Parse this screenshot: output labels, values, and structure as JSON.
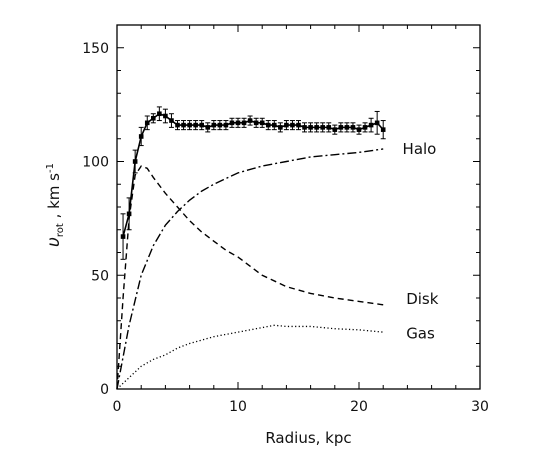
{
  "chart_data": {
    "type": "line",
    "title": "",
    "xlabel": "Radius, kpc",
    "ylabel": "υrot , km s⁻¹",
    "ylabel_parts": {
      "v": "υ",
      "sub": "rot",
      "rest": " , km s",
      "sup": "-1"
    },
    "xlim": [
      0,
      30
    ],
    "ylim": [
      0,
      160
    ],
    "xticks": [
      0,
      10,
      20,
      30
    ],
    "yticks": [
      0,
      50,
      100,
      150
    ],
    "grid": false,
    "series": [
      {
        "name": "Halo",
        "style": "dash-dot",
        "color": "#000000",
        "x": [
          0,
          1,
          2,
          3,
          4,
          5,
          6,
          7,
          8,
          10,
          12,
          14,
          16,
          18,
          20,
          22
        ],
        "y": [
          0,
          28,
          50,
          63,
          72,
          78,
          83,
          87,
          90,
          95,
          98,
          100,
          102,
          103,
          104,
          105.5
        ]
      },
      {
        "name": "Disk",
        "style": "dashed",
        "color": "#000000",
        "x": [
          0,
          0.5,
          1,
          1.5,
          2,
          2.5,
          3,
          4,
          5,
          6,
          7,
          8,
          9,
          10,
          11,
          12,
          14,
          16,
          18,
          20,
          22
        ],
        "y": [
          0,
          40,
          75,
          94,
          98,
          97,
          93,
          86,
          80,
          74,
          69,
          65,
          61,
          58,
          54,
          50,
          45,
          42,
          40,
          38.5,
          37
        ]
      },
      {
        "name": "Gas",
        "style": "dotted",
        "color": "#000000",
        "x": [
          0,
          1,
          2,
          3,
          4,
          5,
          6,
          8,
          10,
          12,
          13,
          14,
          16,
          18,
          20,
          22
        ],
        "y": [
          0,
          5,
          10,
          13,
          15,
          18,
          20,
          23,
          25,
          27,
          28,
          27.5,
          27.5,
          26.5,
          26,
          25
        ]
      },
      {
        "name": "",
        "style": "observed",
        "color": "#000000",
        "x": [
          0.5,
          1,
          1.5,
          2,
          2.5,
          3,
          3.5,
          4,
          4.5,
          5,
          5.5,
          6,
          6.5,
          7,
          7.5,
          8,
          8.5,
          9,
          9.5,
          10,
          10.5,
          11,
          11.5,
          12,
          12.5,
          13,
          13.5,
          14,
          14.5,
          15,
          15.5,
          16,
          16.5,
          17,
          17.5,
          18,
          18.5,
          19,
          19.5,
          20,
          20.5,
          21,
          21.5,
          22
        ],
        "y": [
          67,
          77,
          100,
          111,
          117,
          119,
          121,
          120,
          118,
          116,
          116,
          116,
          116,
          116,
          115,
          116,
          116,
          116,
          117,
          117,
          117,
          118,
          117,
          117,
          116,
          116,
          115,
          116,
          116,
          116,
          115,
          115,
          115,
          115,
          115,
          114,
          115,
          115,
          115,
          114,
          115,
          116,
          117,
          114
        ],
        "err": [
          10,
          7,
          5,
          4,
          3,
          2,
          3,
          3,
          3,
          2,
          2,
          2,
          2,
          2,
          2,
          2,
          2,
          2,
          2,
          2,
          2,
          2,
          2,
          2,
          2,
          2,
          2,
          2,
          2,
          2,
          2,
          2,
          2,
          2,
          2,
          2,
          2,
          2,
          2,
          2,
          2,
          3,
          5,
          4
        ]
      }
    ],
    "annotations": [
      {
        "text": "Halo",
        "x": 23.6,
        "y": 105.5
      },
      {
        "text": "Disk",
        "x": 23.9,
        "y": 39.5
      },
      {
        "text": "Gas",
        "x": 23.9,
        "y": 24.5
      }
    ]
  }
}
